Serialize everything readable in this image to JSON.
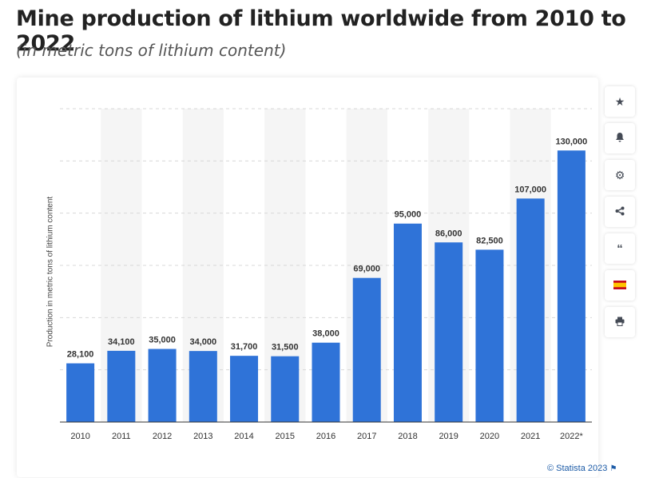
{
  "header": {
    "title": "Mine production of lithium worldwide from 2010 to 2022",
    "subtitle": "(in metric tons of lithium content)"
  },
  "toolbar": {
    "buttons": [
      {
        "name": "star-icon",
        "glyph": "★"
      },
      {
        "name": "bell-icon",
        "glyph": "🔔"
      },
      {
        "name": "gear-icon",
        "glyph": "⚙"
      },
      {
        "name": "share-icon",
        "glyph": "⋖"
      },
      {
        "name": "quote-icon",
        "glyph": "❝"
      },
      {
        "name": "language-flag-icon",
        "glyph": ""
      },
      {
        "name": "print-icon",
        "glyph": "⎙"
      }
    ]
  },
  "credit": "© Statista 2023",
  "colors": {
    "bar": "#2f73d8",
    "band": "#f5f5f5"
  },
  "chart_data": {
    "type": "bar",
    "categories": [
      "2010",
      "2011",
      "2012",
      "2013",
      "2014",
      "2015",
      "2016",
      "2017",
      "2018",
      "2019",
      "2020",
      "2021",
      "2022*"
    ],
    "values": [
      28100,
      34100,
      35000,
      34000,
      31700,
      31500,
      38000,
      69000,
      95000,
      86000,
      82500,
      107000,
      130000
    ],
    "value_labels": [
      "28,100",
      "34,100",
      "35,000",
      "34,000",
      "31,700",
      "31,500",
      "38,000",
      "69,000",
      "95,000",
      "86,000",
      "82,500",
      "107,000",
      "130,000"
    ],
    "ylabel": "Production in metric tons of lithium content",
    "ylim": [
      0,
      150000
    ],
    "grid": true,
    "title": "Mine production of lithium worldwide from 2010 to 2022",
    "subtitle": "(in metric tons of lithium content)"
  }
}
